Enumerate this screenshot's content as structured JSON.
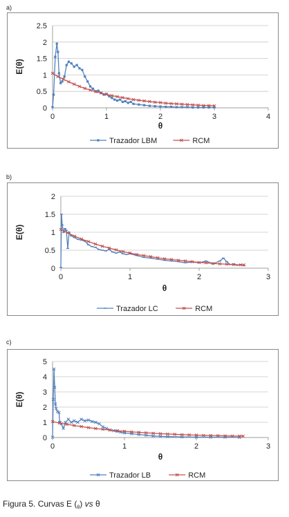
{
  "chart_data": [
    {
      "panel": "a)",
      "type": "line",
      "xlabel": "θ",
      "ylabel": "E(θ)",
      "xlim": [
        0,
        4
      ],
      "ylim": [
        0,
        2.5
      ],
      "xticks": [
        "0",
        "1",
        "2",
        "3",
        "4"
      ],
      "yticks": [
        "0",
        "0.5",
        "1",
        "1.5",
        "2",
        "2.5"
      ],
      "grid": "horizontal",
      "legend": "bottom",
      "series": [
        {
          "name": "Trazador LBM",
          "color": "#4f81bd",
          "marker": "square",
          "x": [
            0,
            0.02,
            0.05,
            0.08,
            0.1,
            0.12,
            0.15,
            0.18,
            0.22,
            0.26,
            0.3,
            0.35,
            0.4,
            0.45,
            0.5,
            0.55,
            0.6,
            0.65,
            0.7,
            0.75,
            0.8,
            0.85,
            0.9,
            0.95,
            1.0,
            1.05,
            1.1,
            1.15,
            1.2,
            1.25,
            1.3,
            1.35,
            1.4,
            1.45,
            1.5,
            1.6,
            1.7,
            1.8,
            1.9,
            2.0,
            2.1,
            2.2,
            2.3,
            2.4,
            2.5,
            2.6,
            2.7,
            2.8,
            2.9,
            3.0
          ],
          "y": [
            0.02,
            0.4,
            1.55,
            1.95,
            1.7,
            1.05,
            0.75,
            0.8,
            0.95,
            1.3,
            1.4,
            1.35,
            1.25,
            1.3,
            1.2,
            1.15,
            0.95,
            0.8,
            0.65,
            0.58,
            0.5,
            0.52,
            0.45,
            0.4,
            0.42,
            0.35,
            0.3,
            0.25,
            0.22,
            0.25,
            0.18,
            0.2,
            0.15,
            0.18,
            0.12,
            0.1,
            0.08,
            0.06,
            0.05,
            0.04,
            0.03,
            0.03,
            0.02,
            0.02,
            0.02,
            0.01,
            0.01,
            0.01,
            0.01,
            0.01
          ]
        },
        {
          "name": "RCM",
          "color": "#c0504d",
          "marker": "x",
          "x": [
            0,
            0.1,
            0.2,
            0.3,
            0.4,
            0.5,
            0.6,
            0.7,
            0.8,
            0.9,
            1.0,
            1.1,
            1.2,
            1.3,
            1.4,
            1.5,
            1.6,
            1.7,
            1.8,
            1.9,
            2.0,
            2.1,
            2.2,
            2.3,
            2.4,
            2.5,
            2.6,
            2.7,
            2.8,
            2.9,
            3.0
          ],
          "y": [
            1.05,
            0.95,
            0.87,
            0.79,
            0.72,
            0.65,
            0.59,
            0.54,
            0.49,
            0.45,
            0.41,
            0.37,
            0.34,
            0.31,
            0.28,
            0.25,
            0.23,
            0.21,
            0.19,
            0.17,
            0.16,
            0.14,
            0.13,
            0.12,
            0.11,
            0.1,
            0.09,
            0.08,
            0.07,
            0.07,
            0.06
          ]
        }
      ]
    },
    {
      "panel": "b)",
      "type": "line",
      "xlabel": "θ",
      "ylabel": "E(θ)",
      "xlim": [
        0,
        3
      ],
      "ylim": [
        0,
        2
      ],
      "xticks": [
        "0",
        "1",
        "2",
        "3"
      ],
      "yticks": [
        "0",
        "0.5",
        "1",
        "1.5",
        "2"
      ],
      "grid": "horizontal",
      "legend": "bottom",
      "series": [
        {
          "name": "Trazador LC",
          "color": "#4f81bd",
          "marker": "dash",
          "x": [
            0,
            0.01,
            0.02,
            0.04,
            0.06,
            0.08,
            0.1,
            0.12,
            0.15,
            0.2,
            0.25,
            0.3,
            0.35,
            0.4,
            0.45,
            0.5,
            0.55,
            0.6,
            0.65,
            0.7,
            0.75,
            0.8,
            0.85,
            0.9,
            0.95,
            1.0,
            1.1,
            1.2,
            1.3,
            1.4,
            1.5,
            1.6,
            1.7,
            1.8,
            1.9,
            2.0,
            2.1,
            2.2,
            2.3,
            2.35,
            2.4,
            2.45,
            2.5,
            2.55,
            2.6,
            2.65
          ],
          "y": [
            0.02,
            1.5,
            1.2,
            1.0,
            1.1,
            1.05,
            0.55,
            1.0,
            0.9,
            0.85,
            0.8,
            0.78,
            0.75,
            0.65,
            0.6,
            0.58,
            0.52,
            0.5,
            0.48,
            0.52,
            0.45,
            0.42,
            0.45,
            0.4,
            0.38,
            0.4,
            0.35,
            0.3,
            0.28,
            0.25,
            0.22,
            0.2,
            0.18,
            0.15,
            0.17,
            0.15,
            0.2,
            0.12,
            0.2,
            0.28,
            0.18,
            0.1,
            0.12,
            0.08,
            0.1,
            0.07
          ]
        },
        {
          "name": "RCM",
          "color": "#c0504d",
          "marker": "x",
          "x": [
            0,
            0.1,
            0.2,
            0.3,
            0.4,
            0.5,
            0.6,
            0.7,
            0.8,
            0.9,
            1.0,
            1.1,
            1.2,
            1.3,
            1.4,
            1.5,
            1.6,
            1.7,
            1.8,
            1.9,
            2.0,
            2.1,
            2.2,
            2.3,
            2.4,
            2.5,
            2.6,
            2.65
          ],
          "y": [
            1.08,
            0.98,
            0.89,
            0.81,
            0.74,
            0.67,
            0.61,
            0.56,
            0.51,
            0.46,
            0.42,
            0.38,
            0.35,
            0.32,
            0.29,
            0.26,
            0.24,
            0.22,
            0.2,
            0.18,
            0.16,
            0.15,
            0.13,
            0.12,
            0.11,
            0.1,
            0.09,
            0.09
          ]
        }
      ]
    },
    {
      "panel": "c)",
      "type": "line",
      "xlabel": "θ",
      "ylabel": "E(θ)",
      "xlim": [
        0,
        3
      ],
      "ylim": [
        0,
        5
      ],
      "xticks": [
        "0",
        "1",
        "2",
        "3"
      ],
      "yticks": [
        "0",
        "1",
        "2",
        "3",
        "4",
        "5"
      ],
      "grid": "horizontal",
      "legend": "bottom",
      "series": [
        {
          "name": "Trazador LB",
          "color": "#4f81bd",
          "marker": "x",
          "x": [
            0,
            0.01,
            0.02,
            0.03,
            0.04,
            0.05,
            0.07,
            0.09,
            0.1,
            0.12,
            0.15,
            0.18,
            0.22,
            0.26,
            0.3,
            0.35,
            0.4,
            0.45,
            0.5,
            0.55,
            0.6,
            0.65,
            0.7,
            0.75,
            0.8,
            0.85,
            0.9,
            0.95,
            1.0,
            1.1,
            1.2,
            1.3,
            1.4,
            1.5,
            1.6,
            1.8,
            2.0,
            2.2,
            2.4,
            2.6
          ],
          "y": [
            0.02,
            2.5,
            4.5,
            3.3,
            2.2,
            1.9,
            1.7,
            1.65,
            1.0,
            0.9,
            0.6,
            1.0,
            1.2,
            1.0,
            1.1,
            1.0,
            1.2,
            1.1,
            1.15,
            1.05,
            1.0,
            0.9,
            0.7,
            0.6,
            0.5,
            0.45,
            0.4,
            0.35,
            0.3,
            0.25,
            0.2,
            0.15,
            0.1,
            0.08,
            0.06,
            0.04,
            0.03,
            0.02,
            0.02,
            0.01
          ]
        },
        {
          "name": "RCM",
          "color": "#c0504d",
          "marker": "x",
          "x": [
            0,
            0.1,
            0.2,
            0.3,
            0.4,
            0.5,
            0.6,
            0.7,
            0.8,
            0.9,
            1.0,
            1.1,
            1.2,
            1.3,
            1.4,
            1.5,
            1.6,
            1.7,
            1.8,
            1.9,
            2.0,
            2.1,
            2.2,
            2.3,
            2.4,
            2.5,
            2.6,
            2.65
          ],
          "y": [
            1.05,
            0.95,
            0.87,
            0.79,
            0.72,
            0.65,
            0.59,
            0.54,
            0.49,
            0.45,
            0.41,
            0.37,
            0.34,
            0.31,
            0.28,
            0.25,
            0.23,
            0.21,
            0.19,
            0.17,
            0.16,
            0.14,
            0.13,
            0.12,
            0.11,
            0.1,
            0.09,
            0.09
          ]
        }
      ]
    }
  ],
  "caption": {
    "prefix": "Figura 5. Curvas E (",
    "subscript": "θ",
    "middle": ") ",
    "italic": "vs",
    "suffix": " θ"
  }
}
